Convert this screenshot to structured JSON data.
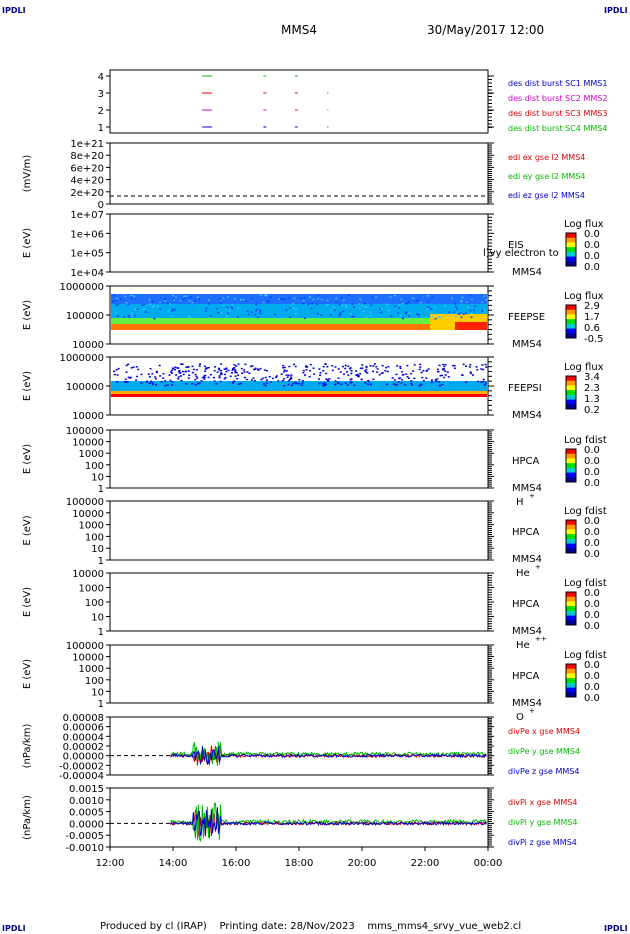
{
  "corner_label": "IPDLI",
  "header": {
    "spacecraft": "MMS4",
    "datetime": "30/May/2017 12:00"
  },
  "footer": {
    "text": "Produced by cl (IRAP)    Printing date: 28/Nov/2023    mms_mms4_srvy_vue_web2.cl"
  },
  "time_axis": {
    "ticks": [
      "12:00",
      "14:00",
      "16:00",
      "18:00",
      "20:00",
      "22:00",
      "00:00"
    ]
  },
  "panels": [
    {
      "id": "burst",
      "ylabel": "",
      "yticks": [
        "4",
        "3",
        "2",
        "1"
      ],
      "legend": [
        {
          "text": "des dist burst SC1 MMS1",
          "color": "#0000cc"
        },
        {
          "text": "des dist burst SC2 MMS2",
          "color": "#cc00cc"
        },
        {
          "text": "des dist burst SC3 MMS3",
          "color": "#dd0000"
        },
        {
          "text": "des dist burst SC4 MMS4",
          "color": "#00bb00"
        }
      ]
    },
    {
      "id": "edi",
      "ylabel": "(mV/m)",
      "yticks": [
        "1e+21",
        "8e+20",
        "6e+20",
        "4e+20",
        "2e+20",
        "0"
      ],
      "legend": [
        {
          "text": "edi ex gse l2 MMS4",
          "color": "#dd0000"
        },
        {
          "text": "edi ey gse l2 MMS4",
          "color": "#00bb00"
        },
        {
          "text": "edi ez gse l2 MMS4",
          "color": "#0000cc"
        }
      ]
    },
    {
      "id": "eis",
      "ylabel": "E (eV)",
      "yticks": [
        "1e+07",
        "1e+06",
        "1e+05",
        "1e+04"
      ],
      "instrument": "EIS",
      "sc": "MMS4",
      "overlay": "l)vy electron to",
      "cbar": {
        "title": "Log flux",
        "values": [
          "0.0",
          "0.0",
          "0.0",
          "0.0"
        ]
      }
    },
    {
      "id": "feepse",
      "ylabel": "E (eV)",
      "yticks": [
        "1000000",
        "100000",
        "10000"
      ],
      "instrument": "FEEPSE",
      "sc": "MMS4",
      "cbar": {
        "title": "Log flux",
        "values": [
          "2.9",
          "1.7",
          "0.6",
          "-0.5"
        ]
      }
    },
    {
      "id": "feepsi",
      "ylabel": "E (eV)",
      "yticks": [
        "1000000",
        "100000",
        "10000"
      ],
      "instrument": "FEEPSI",
      "sc": "MMS4",
      "cbar": {
        "title": "Log flux",
        "values": [
          "3.4",
          "2.3",
          "1.3",
          "0.2"
        ]
      }
    },
    {
      "id": "hpca_h",
      "ylabel": "E (eV)",
      "yticks": [
        "100000",
        "10000",
        "1000",
        "100",
        "10",
        "1"
      ],
      "instrument": "HPCA",
      "sc": "MMS4",
      "species": "H",
      "species_sup": "+",
      "cbar": {
        "title": "Log fdist",
        "values": [
          "0.0",
          "0.0",
          "0.0",
          "0.0"
        ]
      }
    },
    {
      "id": "hpca_he",
      "ylabel": "E (eV)",
      "yticks": [
        "100000",
        "10000",
        "1000",
        "100",
        "10",
        "1"
      ],
      "instrument": "HPCA",
      "sc": "MMS4",
      "species": "He",
      "species_sup": "+",
      "cbar": {
        "title": "Log fdist",
        "values": [
          "0.0",
          "0.0",
          "0.0",
          "0.0"
        ]
      }
    },
    {
      "id": "hpca_he2",
      "ylabel": "E (eV)",
      "yticks": [
        "10000",
        "1000",
        "100",
        "10",
        "1"
      ],
      "instrument": "HPCA",
      "sc": "MMS4",
      "species": "He",
      "species_sup": "++",
      "cbar": {
        "title": "Log fdist",
        "values": [
          "0.0",
          "0.0",
          "0.0",
          "0.0"
        ]
      }
    },
    {
      "id": "hpca_o",
      "ylabel": "E (eV)",
      "yticks": [
        "100000",
        "10000",
        "1000",
        "100",
        "10",
        "1"
      ],
      "instrument": "HPCA",
      "sc": "MMS4",
      "species": "O",
      "species_sup": "+",
      "cbar": {
        "title": "Log fdist",
        "values": [
          "0.0",
          "0.0",
          "0.0",
          "0.0"
        ]
      }
    },
    {
      "id": "divpe",
      "ylabel": "(nPa/km)",
      "yticks": [
        "0.00008",
        "0.00006",
        "0.00004",
        "0.00002",
        "0.00000",
        "-0.00002",
        "-0.00004"
      ],
      "legend": [
        {
          "text": "divPe x gse MMS4",
          "color": "#dd0000"
        },
        {
          "text": "divPe y gse MMS4",
          "color": "#00bb00"
        },
        {
          "text": "divPe z gse MMS4",
          "color": "#0000cc"
        }
      ]
    },
    {
      "id": "divpi",
      "ylabel": "(nPa/km)",
      "yticks": [
        "0.0015",
        "0.0010",
        "0.0005",
        "0.0000",
        "-0.0005",
        "-0.0010"
      ],
      "legend": [
        {
          "text": "divPi x gse MMS4",
          "color": "#dd0000"
        },
        {
          "text": "divPi y gse MMS4",
          "color": "#00bb00"
        },
        {
          "text": "divPi z gse MMS4",
          "color": "#0000cc"
        }
      ]
    }
  ],
  "chart_data": {
    "type": "line",
    "x_unit": "UT hours",
    "x_range": [
      "12:00",
      "00:00"
    ],
    "data_start": "13:55",
    "burst_intervals": [
      {
        "sc": "SC4",
        "times": [
          "15:05",
          "16:55",
          "17:55"
        ]
      },
      {
        "sc": "SC3",
        "times": [
          "15:05",
          "16:55",
          "17:55",
          "18:55"
        ]
      },
      {
        "sc": "SC2",
        "times": [
          "15:05",
          "16:55",
          "17:55",
          "18:55"
        ]
      },
      {
        "sc": "SC1",
        "times": [
          "15:05",
          "16:55",
          "17:55",
          "18:55"
        ]
      }
    ],
    "divpe_range": [
      -4e-05,
      8e-05
    ],
    "divpi_range": [
      -0.001,
      0.0015
    ]
  }
}
